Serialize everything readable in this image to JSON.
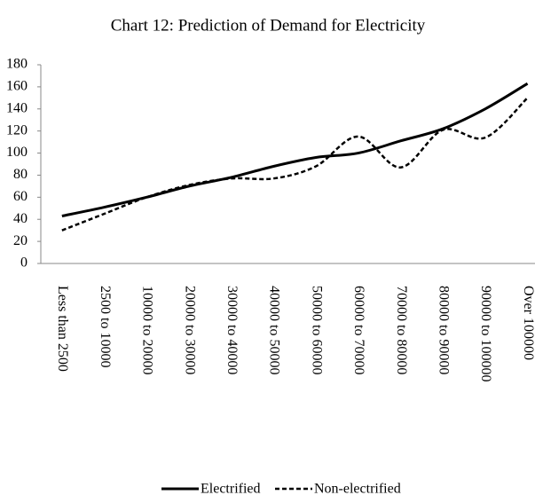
{
  "chart_data": {
    "type": "line",
    "title": "Chart 12: Prediction of Demand for Electricity",
    "categories": [
      "Less than 2500",
      "2500 to 10000",
      "10000 to 20000",
      "20000 to 30000",
      "30000 to 40000",
      "40000 to 50000",
      "50000 to 60000",
      "60000 to 70000",
      "70000 to 80000",
      "80000 to 90000",
      "90000 to 100000",
      "Over 100000"
    ],
    "series": [
      {
        "name": "Electrified",
        "color": "#000000",
        "dashed": false,
        "values": [
          43,
          51,
          60,
          70,
          78,
          88,
          96,
          100,
          111,
          122,
          140,
          163
        ]
      },
      {
        "name": "Non-electrified",
        "color": "#000000",
        "dashed": true,
        "values": [
          30,
          45,
          60,
          71,
          77,
          77,
          88,
          115,
          87,
          121,
          114,
          150
        ]
      }
    ],
    "ylim": [
      0,
      180
    ],
    "yticks": [
      0,
      20,
      40,
      60,
      80,
      100,
      120,
      140,
      160,
      180
    ],
    "smooth": true,
    "grid": false,
    "legend": "bottom"
  }
}
